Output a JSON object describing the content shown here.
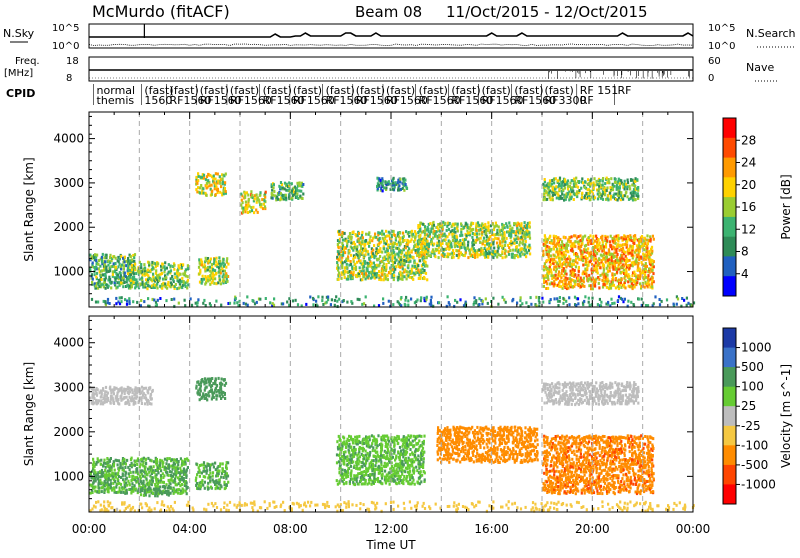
{
  "header": {
    "station": "McMurdo (fitACF)",
    "beam": "Beam 08",
    "date_range": "11/Oct/2015 - 12/Oct/2015"
  },
  "strips": {
    "nsky": {
      "label": "N.Sky",
      "ticks": [
        "10^5",
        "10^0"
      ],
      "right_label": "N.Search",
      "right_ticks": [
        "10^5",
        "10^0"
      ]
    },
    "freq": {
      "label_line1": "Freq.",
      "label_line2": "[MHz]",
      "ticks": [
        "18",
        "8"
      ],
      "right_label": "Nave",
      "right_ticks": [
        "60",
        "0"
      ]
    },
    "cpid": {
      "label": "CPID",
      "entries": [
        {
          "time_h": 0.3,
          "line1": "normal",
          "line2": "themis"
        },
        {
          "time_h": 2.2,
          "line1": "(fast)",
          "line2": "1560"
        },
        {
          "time_h": 3.2,
          "line1": "(fast)",
          "line2": "RF1560"
        },
        {
          "time_h": 4.4,
          "line1": "(fast)",
          "line2": "RF1560"
        },
        {
          "time_h": 5.6,
          "line1": "(fast)",
          "line2": "RF1560"
        },
        {
          "time_h": 6.9,
          "line1": "(fast)",
          "line2": "RF1560"
        },
        {
          "time_h": 8.1,
          "line1": "(fast)",
          "line2": "RF1560"
        },
        {
          "time_h": 9.4,
          "line1": "(fast)",
          "line2": "RF1560"
        },
        {
          "time_h": 10.6,
          "line1": "(fast)",
          "line2": "RF1560"
        },
        {
          "time_h": 11.8,
          "line1": "(fast)",
          "line2": "RF1560"
        },
        {
          "time_h": 13.1,
          "line1": "(fast)",
          "line2": "RF1560"
        },
        {
          "time_h": 14.4,
          "line1": "(fast)",
          "line2": "RF1560"
        },
        {
          "time_h": 15.6,
          "line1": "(fast)",
          "line2": "RF1560"
        },
        {
          "time_h": 16.9,
          "line1": "(fast)",
          "line2": "RF1560"
        },
        {
          "time_h": 18.1,
          "line1": "(fast)",
          "line2": "RF3300"
        },
        {
          "time_h": 19.5,
          "line1": "RF 151",
          "line2": "RF"
        },
        {
          "time_h": 21.0,
          "line1": "RF",
          "line2": ""
        }
      ]
    }
  },
  "chart_data": [
    {
      "type": "heatmap",
      "name": "power",
      "ylabel": "Slant Range [km]",
      "ylim": [
        200,
        4600
      ],
      "yticks": [
        1000,
        2000,
        3000,
        4000
      ],
      "xlim": [
        0,
        24
      ],
      "xticks": [
        "00:00",
        "04:00",
        "08:00",
        "12:00",
        "16:00",
        "20:00",
        "00:00"
      ],
      "colorbar": {
        "label": "Power [dB]",
        "ticks": [
          "28",
          "24",
          "20",
          "16",
          "12",
          "8",
          "4"
        ],
        "colors": [
          "#ff0000",
          "#ff4a00",
          "#ff9a00",
          "#ffd200",
          "#9acd32",
          "#3cb371",
          "#2e8b57",
          "#2060c0",
          "#0000ff"
        ]
      },
      "echo_regions": [
        {
          "t": [
            0,
            1.8
          ],
          "r": [
            600,
            1400
          ],
          "v": 12
        },
        {
          "t": [
            1.5,
            3.9
          ],
          "r": [
            600,
            1200
          ],
          "v": 14
        },
        {
          "t": [
            4.3,
            5.5
          ],
          "r": [
            700,
            1300
          ],
          "v": 16
        },
        {
          "t": [
            4.2,
            5.4
          ],
          "r": [
            2700,
            3200
          ],
          "v": 18
        },
        {
          "t": [
            6.0,
            7.0
          ],
          "r": [
            2300,
            2800
          ],
          "v": 20
        },
        {
          "t": [
            7.2,
            8.5
          ],
          "r": [
            2600,
            3000
          ],
          "v": 12
        },
        {
          "t": [
            9.8,
            13.4
          ],
          "r": [
            800,
            1900
          ],
          "v": 16
        },
        {
          "t": [
            11.4,
            12.6
          ],
          "r": [
            2800,
            3100
          ],
          "v": 8
        },
        {
          "t": [
            13.0,
            17.5
          ],
          "r": [
            1300,
            2100
          ],
          "v": 16
        },
        {
          "t": [
            18.0,
            22.4
          ],
          "r": [
            600,
            1800
          ],
          "v": 22
        },
        {
          "t": [
            18.0,
            21.8
          ],
          "r": [
            2600,
            3100
          ],
          "v": 14
        },
        {
          "t": [
            0,
            24
          ],
          "r": [
            200,
            420
          ],
          "v": 8
        }
      ]
    },
    {
      "type": "heatmap",
      "name": "velocity",
      "ylabel": "Slant Range [km]",
      "ylim": [
        200,
        4600
      ],
      "yticks": [
        1000,
        2000,
        3000,
        4000
      ],
      "xlim": [
        0,
        24
      ],
      "xticks": [
        "00:00",
        "04:00",
        "08:00",
        "12:00",
        "16:00",
        "20:00",
        "00:00"
      ],
      "xlabel": "Time UT",
      "colorbar": {
        "label": "Velocity [m s^-1]",
        "ticks": [
          "1000",
          "500",
          "100",
          "25",
          "-25",
          "-100",
          "-500",
          "-1000"
        ],
        "colors": [
          "#1c3aa6",
          "#3a72c8",
          "#4a9a5a",
          "#66cc33",
          "#bdbdbd",
          "#f5c842",
          "#ff8c00",
          "#ff4500",
          "#ff0000"
        ]
      },
      "echo_regions": [
        {
          "t": [
            0,
            3.9
          ],
          "r": [
            600,
            1400
          ],
          "v": 100
        },
        {
          "t": [
            2.0,
            3.2
          ],
          "r": [
            550,
            750
          ],
          "v": 200
        },
        {
          "t": [
            4.2,
            5.5
          ],
          "r": [
            700,
            1300
          ],
          "v": 100
        },
        {
          "t": [
            4.2,
            5.4
          ],
          "r": [
            2700,
            3200
          ],
          "v": 300
        },
        {
          "t": [
            9.8,
            13.3
          ],
          "r": [
            800,
            1900
          ],
          "v": 80
        },
        {
          "t": [
            13.8,
            17.8
          ],
          "r": [
            1300,
            2100
          ],
          "v": -300
        },
        {
          "t": [
            18.0,
            22.4
          ],
          "r": [
            600,
            1900
          ],
          "v": -350
        },
        {
          "t": [
            18.0,
            21.8
          ],
          "r": [
            2600,
            3100
          ],
          "v": 0
        },
        {
          "t": [
            0,
            2.5
          ],
          "r": [
            2600,
            3000
          ],
          "v": 0
        },
        {
          "t": [
            0,
            24
          ],
          "r": [
            200,
            420
          ],
          "v": -60
        }
      ]
    }
  ]
}
